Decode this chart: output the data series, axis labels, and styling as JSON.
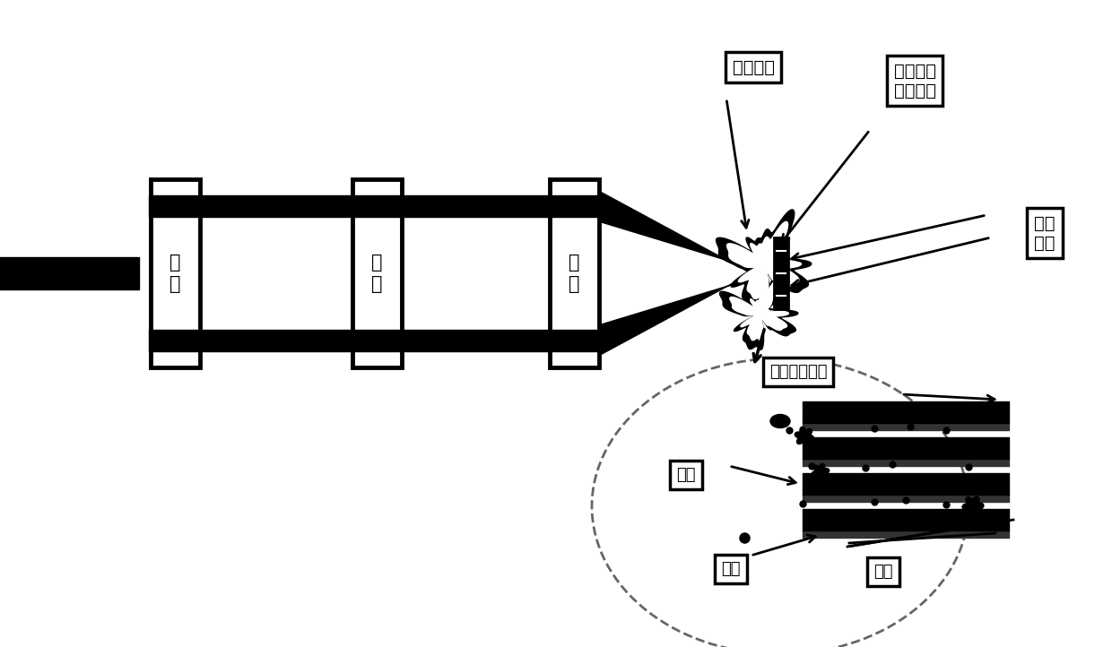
{
  "bg_color": "#ffffff",
  "text_color": "#000000",
  "label_分束": "分\n束",
  "label_同步": "同\n步",
  "label_聚焦": "聚\n焦",
  "label_辅助气体": "辅助气体",
  "label_诱导击穿": "诱导击穿\n等离子体",
  "label_待测样品": "待测\n样品",
  "label_等离子体光谱": "等离子体光谱",
  "label_电子": "电子",
  "label_离子": "离子",
  "label_分子": "分子",
  "figw": 12.4,
  "figh": 7.22,
  "dpi": 100
}
